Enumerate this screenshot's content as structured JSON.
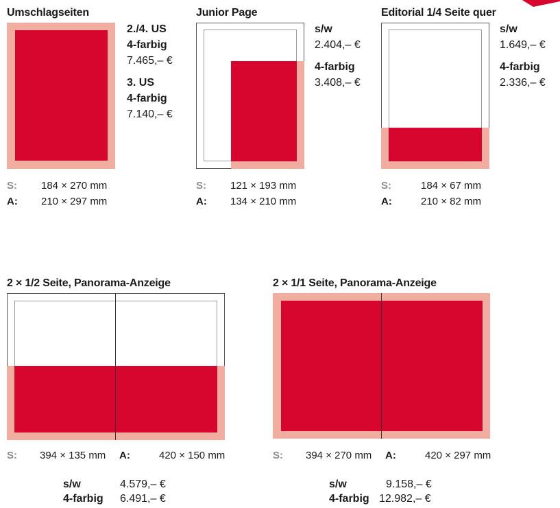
{
  "colors": {
    "red": "#d6062f",
    "pink": "#f0ada0"
  },
  "umschlag": {
    "title": "Umschlagseiten",
    "us24_label": "2./4. US",
    "us24_color": "4-farbig",
    "us24_price": "7.465,– €",
    "us3_label": "3. US",
    "us3_color": "4-farbig",
    "us3_price": "7.140,– €",
    "s_key": "S:",
    "s_val": "184 × 270 mm",
    "a_key": "A:",
    "a_val": "210 × 297 mm"
  },
  "junior": {
    "title": "Junior Page",
    "sw_label": "s/w",
    "sw_price": "2.404,– €",
    "color_label": "4-farbig",
    "color_price": "3.408,– €",
    "s_key": "S:",
    "s_val": "121 × 193 mm",
    "a_key": "A:",
    "a_val": "134 × 210 mm"
  },
  "editorial": {
    "title": "Editorial 1/4 Seite quer",
    "sw_label": "s/w",
    "sw_price": "1.649,– €",
    "color_label": "4-farbig",
    "color_price": "2.336,– €",
    "s_key": "S:",
    "s_val": "184 × 67 mm",
    "a_key": "A:",
    "a_val": "210 × 82 mm"
  },
  "half_panorama": {
    "title": "2 × 1/2 Seite, Panorama-Anzeige",
    "s_key": "S:",
    "s_val": "394 × 135 mm",
    "a_key": "A:",
    "a_val": "420 × 150 mm",
    "sw_label": "s/w",
    "sw_price": "4.579,– €",
    "color_label": "4-farbig",
    "color_price": "6.491,– €"
  },
  "full_panorama": {
    "title": "2 × 1/1 Seite, Panorama-Anzeige",
    "s_key": "S:",
    "s_val": "394 × 270 mm",
    "a_key": "A:",
    "a_val": "420 × 297 mm",
    "sw_label": "s/w",
    "sw_price": "9.158,– €",
    "color_label": "4-farbig",
    "color_price": "12.982,– €"
  }
}
